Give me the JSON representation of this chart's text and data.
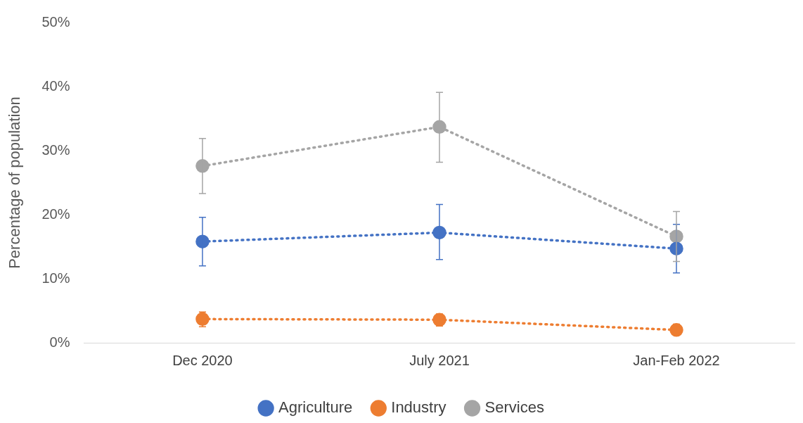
{
  "chart_data": {
    "type": "line",
    "ylabel": "Percentage of population",
    "categories": [
      "Dec 2020",
      "July 2021",
      "Jan-Feb 2022"
    ],
    "series": [
      {
        "name": "Agriculture",
        "color": "#4472c4",
        "values": [
          15.8,
          17.2,
          14.7
        ],
        "errors": [
          [
            12.0,
            19.6
          ],
          [
            13.0,
            21.6
          ],
          [
            10.9,
            18.5
          ]
        ]
      },
      {
        "name": "Industry",
        "color": "#ed7d31",
        "values": [
          3.7,
          3.6,
          2.0
        ],
        "errors": [
          [
            2.5,
            4.8
          ],
          [
            2.6,
            4.5
          ],
          [
            1.2,
            2.9
          ]
        ]
      },
      {
        "name": "Services",
        "color": "#a5a5a5",
        "values": [
          27.6,
          33.7,
          16.6
        ],
        "errors": [
          [
            23.3,
            31.9
          ],
          [
            28.2,
            39.1
          ],
          [
            12.7,
            20.5
          ]
        ]
      }
    ],
    "ylim": [
      0,
      50
    ],
    "yticks": [
      {
        "value": 0,
        "label": "0%"
      },
      {
        "value": 10,
        "label": "10%"
      },
      {
        "value": 20,
        "label": "20%"
      },
      {
        "value": 30,
        "label": "30%"
      },
      {
        "value": 40,
        "label": "40%"
      },
      {
        "value": 50,
        "label": "50%"
      }
    ],
    "grid": false,
    "legend": "bottom",
    "marker": "circle",
    "line_style": "dotted"
  }
}
